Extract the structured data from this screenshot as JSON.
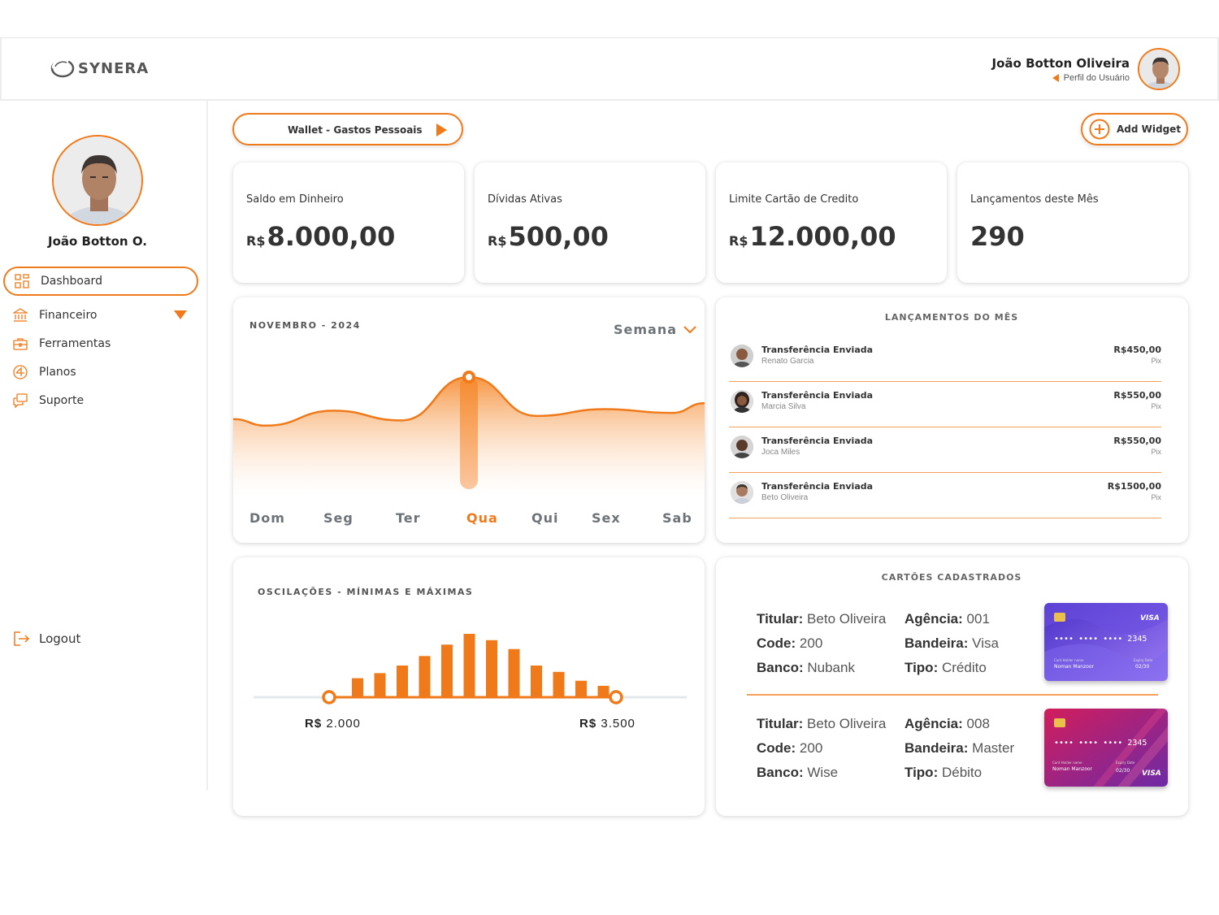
{
  "brand": {
    "logo_text": "SYNERA"
  },
  "header": {
    "user_name": "João Botton Oliveira",
    "profile_link": "Perfil do Usuário"
  },
  "sidebar": {
    "user_name": "João Botton O.",
    "items": [
      {
        "label": "Dashboard",
        "icon": "grid-icon"
      },
      {
        "label": "Financeiro",
        "icon": "bank-icon"
      },
      {
        "label": "Ferramentas",
        "icon": "toolbox-icon"
      },
      {
        "label": "Planos",
        "icon": "plans-icon"
      },
      {
        "label": "Suporte",
        "icon": "chat-icon"
      }
    ],
    "logout_label": "Logout"
  },
  "toolbar": {
    "wallet_label": "Wallet - Gastos Pessoais",
    "add_widget_label": "Add Widget"
  },
  "kpis": [
    {
      "label": "Saldo em Dinheiro",
      "currency": "R$",
      "value": "8.000,00"
    },
    {
      "label": "Dívidas Ativas",
      "currency": "R$",
      "value": "500,00"
    },
    {
      "label": "Limite Cartão de Credito",
      "currency": "R$",
      "value": "12.000,00"
    },
    {
      "label": "Lançamentos deste Mês",
      "currency": "",
      "value": "290"
    }
  ],
  "weekly_chart": {
    "month_label": "NOVEMBRO - 2024",
    "period_label": "Semana",
    "days": [
      "Dom",
      "Seg",
      "Ter",
      "Qua",
      "Qui",
      "Sex",
      "Sab"
    ],
    "highlight_day": "Qua"
  },
  "chart_data": {
    "type": "area",
    "title": "NOVEMBRO - 2024",
    "categories": [
      "Dom",
      "Seg",
      "Ter",
      "Qua",
      "Qui",
      "Sex",
      "Sab"
    ],
    "values": [
      35,
      55,
      42,
      100,
      48,
      57,
      52
    ],
    "y_axis_labels": false,
    "grid": false,
    "accent_color": "#f07a1a"
  },
  "transactions": {
    "title": "LANÇAMENTOS DO MÊS",
    "rows": [
      {
        "title": "Transferência Enviada",
        "person": "Renato Garcia",
        "amount": "R$450,00",
        "method": "Pix"
      },
      {
        "title": "Transferência Enviada",
        "person": "Marcia Silva",
        "amount": "R$550,00",
        "method": "Pix"
      },
      {
        "title": "Transferência Enviada",
        "person": "Joca Miles",
        "amount": "R$550,00",
        "method": "Pix"
      },
      {
        "title": "Transferência Enviada",
        "person": "Beto Oliveira",
        "amount": "R$1500,00",
        "method": "Pix"
      }
    ]
  },
  "oscillations": {
    "title": "OSCILAÇÕES - MÍNIMAS E MÁXIMAS",
    "min_currency": "R$",
    "min_value": "2.000",
    "max_currency": "R$",
    "max_value": "3.500",
    "bar_heights_relative": [
      0.3,
      0.38,
      0.5,
      0.65,
      0.83,
      1.0,
      0.9,
      0.76,
      0.5,
      0.4,
      0.26,
      0.18
    ]
  },
  "cards": {
    "title": "CARTÕES CADASTRADOS",
    "items": [
      {
        "holder_label": "Titular:",
        "holder": "Beto Oliveira",
        "code_label": "Code:",
        "code": "200",
        "bank_label": "Banco:",
        "bank": "Nubank",
        "agency_label": "Agência:",
        "agency": "001",
        "brand_label": "Bandeira:",
        "brand": "Visa",
        "type_label": "Tipo:",
        "type": "Crédito",
        "card_number": "•••• •••• •••• 2345",
        "card_brand": "VISA",
        "card_name": "Noman Manzoor",
        "card_name_caption": "Card Holder name",
        "card_expiry": "02/30",
        "card_expiry_caption": "Expiry Date"
      },
      {
        "holder_label": "Titular:",
        "holder": "Beto Oliveira",
        "code_label": "Code:",
        "code": "200",
        "bank_label": "Banco:",
        "bank": "Wise",
        "agency_label": "Agência:",
        "agency": "008",
        "brand_label": "Bandeira:",
        "brand": "Master",
        "type_label": "Tipo:",
        "type": "Débito",
        "card_number": "•••• •••• •••• 2345",
        "card_brand": "VISA",
        "card_name": "Noman Manzoor",
        "card_name_caption": "Card Holder name",
        "card_expiry": "02/30",
        "card_expiry_caption": "Expiry Date"
      }
    ]
  },
  "colors": {
    "accent": "#f07a1a",
    "card1_gradient": [
      "#5a3fd0",
      "#8a6bf0"
    ],
    "card2_gradient": [
      "#c0206a",
      "#7a2aa8"
    ]
  }
}
